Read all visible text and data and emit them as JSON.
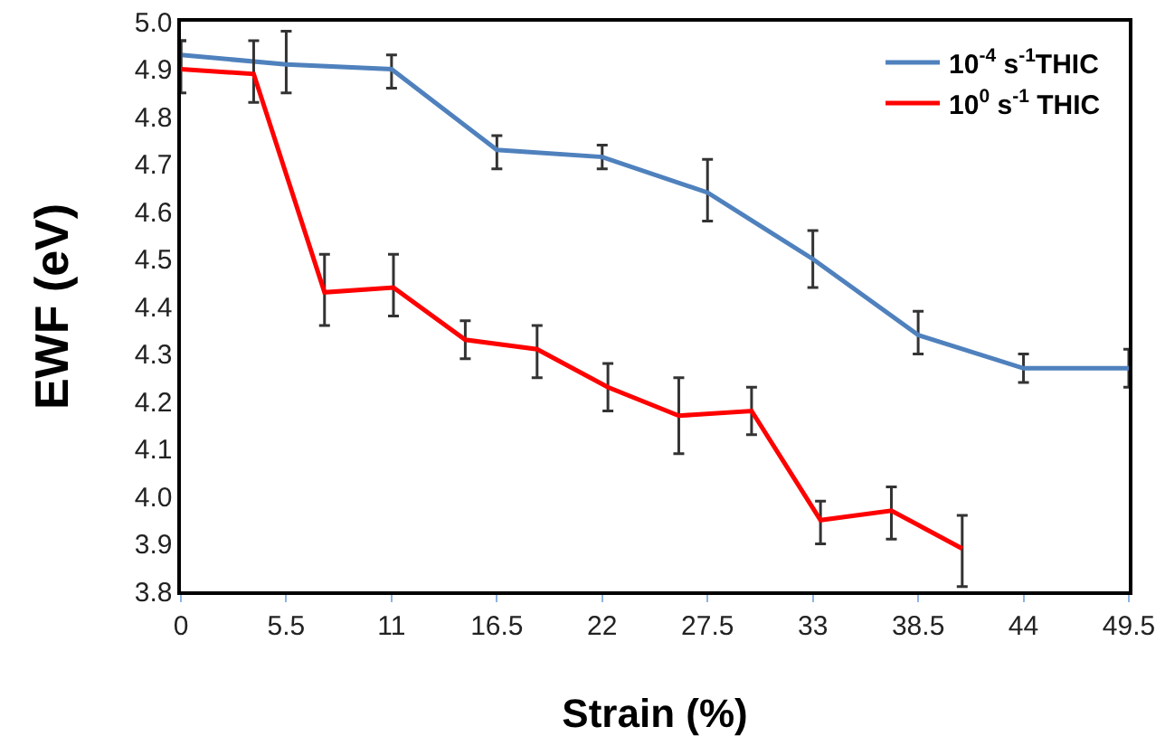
{
  "chart_data": {
    "type": "line",
    "xlabel": "Strain (%)",
    "ylabel": "EWF (eV)",
    "xlim": [
      0,
      49.5
    ],
    "xticks": [
      0,
      5.5,
      11,
      16.5,
      22,
      27.5,
      33,
      38.5,
      44,
      49.5
    ],
    "ylim": [
      3.8,
      5.0
    ],
    "yticks": [
      {
        "value": 3.8,
        "label": "3.8"
      },
      {
        "value": 3.9,
        "label": "3.9"
      },
      {
        "value": 4.0,
        "label": "4.0"
      },
      {
        "value": 4.1,
        "label": "4.1"
      },
      {
        "value": 4.2,
        "label": "4.2"
      },
      {
        "value": 4.3,
        "label": "4.3"
      },
      {
        "value": 4.4,
        "label": "4.4"
      },
      {
        "value": 4.5,
        "label": "4.5"
      },
      {
        "value": 4.6,
        "label": "4.6"
      },
      {
        "value": 4.7,
        "label": "4.7"
      },
      {
        "value": 4.8,
        "label": "4.8"
      },
      {
        "value": 4.9,
        "label": "4.9"
      },
      {
        "value": 5.0,
        "label": "5.0"
      }
    ],
    "grid": false,
    "legend": "top right",
    "marker": "none",
    "line_style": "solid",
    "series": [
      {
        "name": "10$^{-4}$ s$^{-1}$THIC",
        "color": "#4f81bd",
        "x": [
          0,
          5.5,
          11,
          16.5,
          22,
          27.5,
          33,
          38.5,
          44,
          49.5
        ],
        "values": [
          4.93,
          4.91,
          4.9,
          4.73,
          4.715,
          4.64,
          4.5,
          4.34,
          4.27,
          4.27
        ],
        "errors": [
          [
            4.9,
            4.96
          ],
          [
            4.85,
            4.98
          ],
          [
            4.86,
            4.93
          ],
          [
            4.69,
            4.76
          ],
          [
            4.69,
            4.74
          ],
          [
            4.58,
            4.71
          ],
          [
            4.44,
            4.56
          ],
          [
            4.3,
            4.39
          ],
          [
            4.24,
            4.3
          ],
          [
            4.23,
            4.31
          ]
        ]
      },
      {
        "name": "10$^{0}$ s$^{-1}$ THIC",
        "color": "#ff0000",
        "x": [
          0,
          3.8,
          7.5,
          11.1,
          14.85,
          18.6,
          22.3,
          26,
          29.8,
          33.4,
          37.1,
          40.8
        ],
        "values": [
          4.9,
          4.89,
          4.43,
          4.44,
          4.33,
          4.31,
          4.23,
          4.17,
          4.18,
          3.95,
          3.97,
          3.89
        ],
        "errors": [
          [
            4.85,
            4.96
          ],
          [
            4.83,
            4.96
          ],
          [
            4.36,
            4.51
          ],
          [
            4.38,
            4.51
          ],
          [
            4.29,
            4.37
          ],
          [
            4.25,
            4.36
          ],
          [
            4.18,
            4.28
          ],
          [
            4.09,
            4.25
          ],
          [
            4.13,
            4.23
          ],
          [
            3.9,
            3.99
          ],
          [
            3.91,
            4.02
          ],
          [
            3.81,
            3.96
          ]
        ]
      }
    ]
  }
}
